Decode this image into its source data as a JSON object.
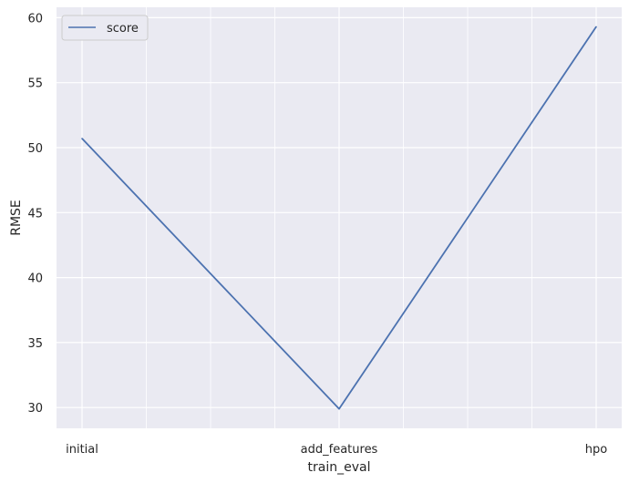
{
  "chart_data": {
    "type": "line",
    "categories": [
      "initial",
      "add_features",
      "hpo"
    ],
    "series": [
      {
        "name": "score",
        "values": [
          50.7,
          29.9,
          59.3
        ],
        "color": "#4c72b0"
      }
    ],
    "xlabel": "train_eval",
    "ylabel": "RMSE",
    "yticks": [
      30,
      35,
      40,
      45,
      50,
      55,
      60
    ],
    "ylim": [
      28.4,
      60.8
    ],
    "grid": true,
    "legend_position": "top-left",
    "background": "#eaeaf2",
    "grid_color": "#ffffff"
  }
}
